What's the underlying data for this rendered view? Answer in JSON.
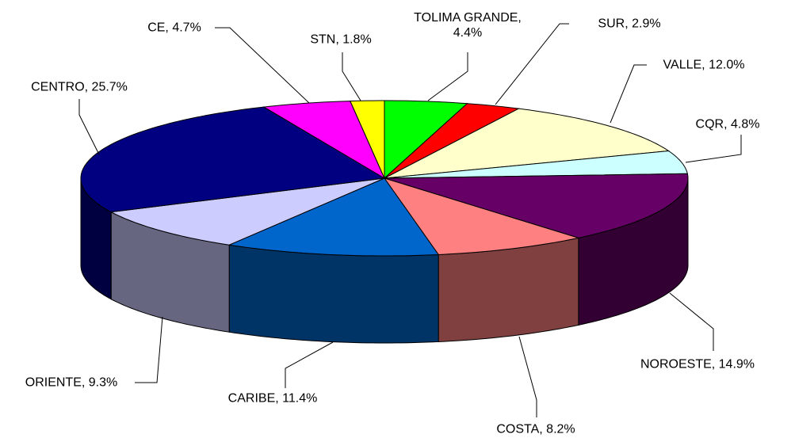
{
  "chart_data": {
    "type": "pie3d",
    "values": [
      4.4,
      2.9,
      12.0,
      4.8,
      14.9,
      8.2,
      11.4,
      9.3,
      25.7,
      4.7,
      1.8
    ],
    "value_labels": [
      "TOLIMA GRANDE,\n4.4%",
      "SUR, 2.9%",
      "VALLE, 12.0%",
      "CQR, 4.8%",
      "NOROESTE, 14.9%",
      "COSTA, 8.2%",
      "CARIBE, 11.4%",
      "ORIENTE, 9.3%",
      "CENTRO, 25.7%",
      "CE, 4.7%",
      "STN, 1.8%"
    ],
    "colors": [
      "#00ff00",
      "#ff0000",
      "#ffffcc",
      "#ccffff",
      "#660066",
      "#ff8080",
      "#0066cc",
      "#ccccff",
      "#000080",
      "#ff00ff",
      "#ffff00"
    ]
  }
}
